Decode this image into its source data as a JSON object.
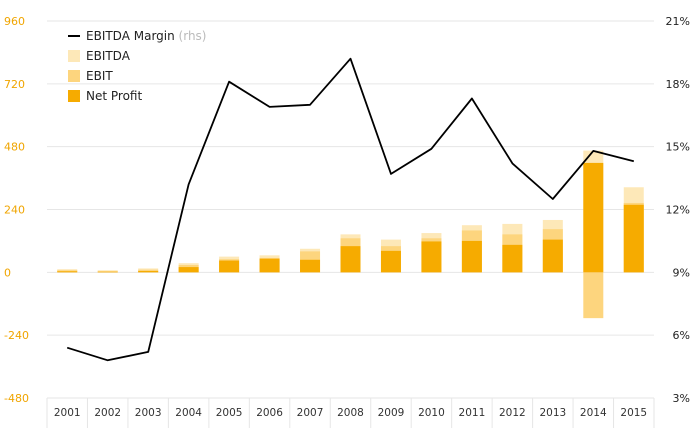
{
  "chart_data": {
    "type": "bar",
    "categories": [
      "2001",
      "2002",
      "2003",
      "2004",
      "2005",
      "2006",
      "2007",
      "2008",
      "2009",
      "2010",
      "2011",
      "2012",
      "2013",
      "2014",
      "2015"
    ],
    "series": [
      {
        "name": "EBITDA",
        "kind": "bar",
        "axis": "left",
        "color": "#fde8b8",
        "values": [
          12,
          8,
          15,
          35,
          60,
          65,
          90,
          145,
          125,
          150,
          180,
          185,
          200,
          465,
          325
        ]
      },
      {
        "name": "EBIT",
        "kind": "bar",
        "axis": "left",
        "color": "#fdd57e",
        "values": [
          8,
          5,
          10,
          28,
          50,
          55,
          80,
          130,
          100,
          130,
          160,
          145,
          165,
          -175,
          265
        ]
      },
      {
        "name": "Net Profit",
        "kind": "bar",
        "axis": "left",
        "color": "#f6ab00",
        "values": [
          4,
          2,
          5,
          20,
          45,
          52,
          48,
          100,
          82,
          118,
          120,
          105,
          125,
          418,
          258
        ]
      },
      {
        "name": "EBITDA Margin",
        "name_suffix": "(rhs)",
        "kind": "line",
        "axis": "right",
        "color": "#000000",
        "values": [
          5.4,
          4.8,
          5.2,
          13.2,
          18.1,
          16.9,
          17.0,
          19.2,
          13.7,
          14.9,
          17.3,
          14.2,
          12.5,
          14.8,
          14.3
        ]
      }
    ],
    "y_left": {
      "ticks": [
        960,
        720,
        480,
        240,
        0,
        -240,
        -480
      ],
      "tick_labels": [
        "960",
        "720",
        "480",
        "240",
        "0",
        "-240",
        "-480"
      ],
      "ylim": [
        -480,
        960
      ]
    },
    "y_right": {
      "ticks": [
        21,
        18,
        15,
        12,
        9,
        6,
        3
      ],
      "tick_labels": [
        "21%",
        "18%",
        "15%",
        "12%",
        "9%",
        "6%",
        "3%"
      ],
      "ylim": [
        3,
        21
      ]
    },
    "title": "",
    "xlabel": "",
    "ylabel": "",
    "grid": true,
    "legend": "top-left",
    "colors": {
      "left_axis": "#f0a500",
      "grid": "#e6e6e6"
    }
  }
}
